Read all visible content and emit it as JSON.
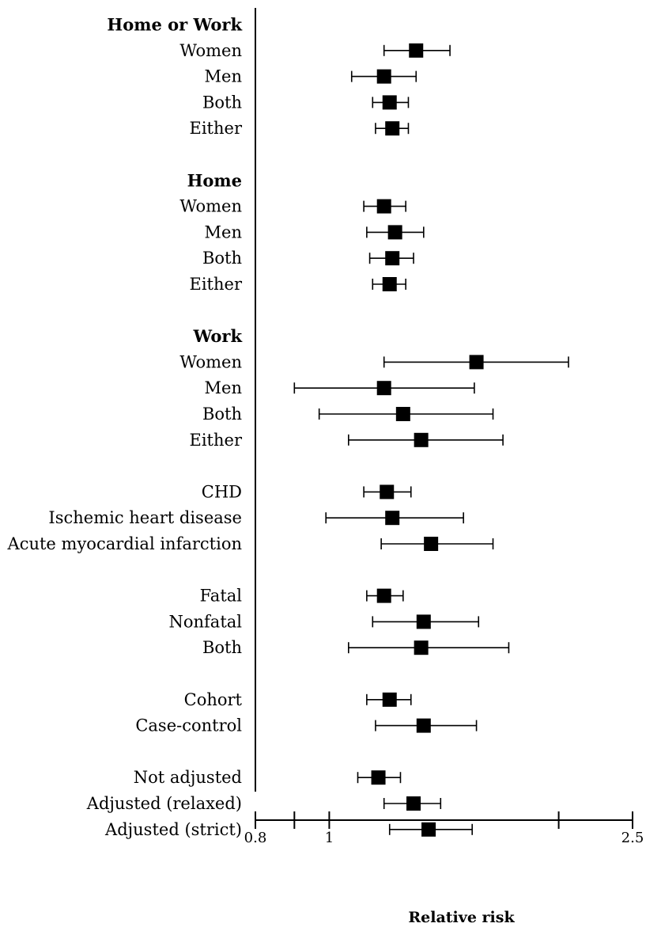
{
  "chart_data": {
    "type": "forest",
    "xlabel": "Relative risk",
    "x_scale": "log",
    "xlim": [
      0.8,
      2.5
    ],
    "ticks": [
      {
        "value": 0.8,
        "label": "0.8"
      },
      {
        "value": 0.9,
        "label": ""
      },
      {
        "value": 1.0,
        "label": "1"
      },
      {
        "value": 2.0,
        "label": ""
      },
      {
        "value": 2.5,
        "label": "2.5"
      }
    ],
    "rows": [
      {
        "label": "Home or Work",
        "header": true
      },
      {
        "label": "Women",
        "rr": 1.3,
        "lo": 1.18,
        "hi": 1.44
      },
      {
        "label": "Men",
        "rr": 1.18,
        "lo": 1.07,
        "hi": 1.3
      },
      {
        "label": "Both",
        "rr": 1.2,
        "lo": 1.14,
        "hi": 1.27
      },
      {
        "label": "Either",
        "rr": 1.21,
        "lo": 1.15,
        "hi": 1.27
      },
      {
        "gap": true
      },
      {
        "label": "Home",
        "header": true
      },
      {
        "label": "Women",
        "rr": 1.18,
        "lo": 1.11,
        "hi": 1.26
      },
      {
        "label": "Men",
        "rr": 1.22,
        "lo": 1.12,
        "hi": 1.33
      },
      {
        "label": "Both",
        "rr": 1.21,
        "lo": 1.13,
        "hi": 1.29
      },
      {
        "label": "Either",
        "rr": 1.2,
        "lo": 1.14,
        "hi": 1.26
      },
      {
        "gap": true
      },
      {
        "label": "Work",
        "header": true
      },
      {
        "label": "Women",
        "rr": 1.56,
        "lo": 1.18,
        "hi": 2.06
      },
      {
        "label": "Men",
        "rr": 1.18,
        "lo": 0.9,
        "hi": 1.55
      },
      {
        "label": "Both",
        "rr": 1.25,
        "lo": 0.97,
        "hi": 1.64
      },
      {
        "label": "Either",
        "rr": 1.32,
        "lo": 1.06,
        "hi": 1.69
      },
      {
        "gap": true
      },
      {
        "label": "CHD",
        "rr": 1.19,
        "lo": 1.11,
        "hi": 1.28
      },
      {
        "label": "Ischemic heart disease",
        "rr": 1.21,
        "lo": 0.99,
        "hi": 1.5
      },
      {
        "label": "Acute myocardial infarction",
        "rr": 1.36,
        "lo": 1.17,
        "hi": 1.64
      },
      {
        "gap": true
      },
      {
        "label": "Fatal",
        "rr": 1.18,
        "lo": 1.12,
        "hi": 1.25
      },
      {
        "label": "Nonfatal",
        "rr": 1.33,
        "lo": 1.14,
        "hi": 1.57
      },
      {
        "label": "Both",
        "rr": 1.32,
        "lo": 1.06,
        "hi": 1.72
      },
      {
        "gap": true
      },
      {
        "label": "Cohort",
        "rr": 1.2,
        "lo": 1.12,
        "hi": 1.28
      },
      {
        "label": "Case-control",
        "rr": 1.33,
        "lo": 1.15,
        "hi": 1.56
      },
      {
        "gap": true
      },
      {
        "label": "Not adjusted",
        "rr": 1.16,
        "lo": 1.09,
        "hi": 1.24
      },
      {
        "label": "Adjusted (relaxed)",
        "rr": 1.29,
        "lo": 1.18,
        "hi": 1.4
      },
      {
        "label": "Adjusted (strict)",
        "rr": 1.35,
        "lo": 1.2,
        "hi": 1.54
      }
    ]
  }
}
